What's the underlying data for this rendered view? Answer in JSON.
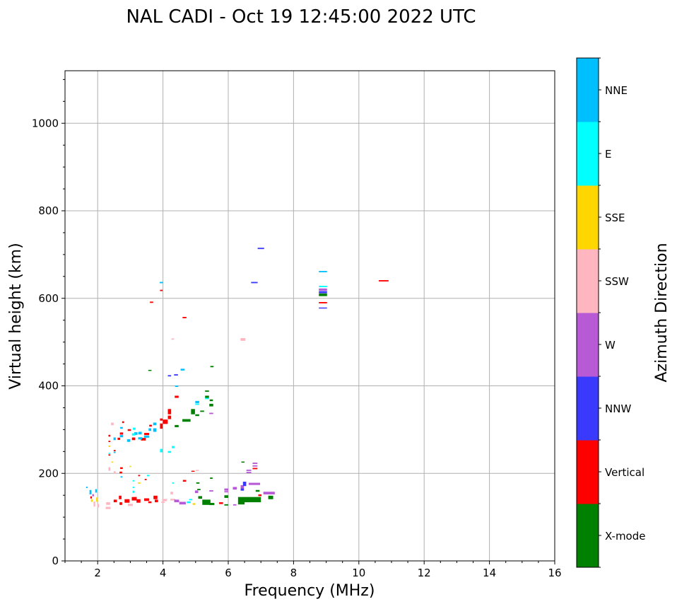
{
  "chart_data": {
    "type": "scatter",
    "title": "NAL CADI - Oct 19 12:45:00 2022 UTC",
    "xlabel": "Frequency (MHz)",
    "ylabel": "Virtual height (km)",
    "xlim": [
      1,
      16
    ],
    "ylim": [
      0,
      1120
    ],
    "xticks": [
      2,
      4,
      6,
      8,
      10,
      12,
      14,
      16
    ],
    "yticks": [
      0,
      200,
      400,
      600,
      800,
      1000
    ],
    "grid": true,
    "colorbar": {
      "label": "Azimuth Direction",
      "categories": [
        {
          "name": "X-mode",
          "color": "#008000"
        },
        {
          "name": "Vertical",
          "color": "#ff0000"
        },
        {
          "name": "NNW",
          "color": "#3a3aff"
        },
        {
          "name": "W",
          "color": "#b85ad6"
        },
        {
          "name": "SSW",
          "color": "#ffb6c1"
        },
        {
          "name": "SSE",
          "color": "#ffd700"
        },
        {
          "name": "E",
          "color": "#00ffff"
        },
        {
          "name": "NNE",
          "color": "#00bfff"
        }
      ]
    },
    "point_format": [
      "frequency_MHz",
      "height_km",
      "direction_index",
      "freq_span_MHz",
      "height_span_km"
    ],
    "points": [
      [
        7.0,
        714,
        2,
        0.2,
        3
      ],
      [
        6.8,
        636,
        2,
        0.2,
        3
      ],
      [
        8.9,
        661,
        7,
        0.25,
        3
      ],
      [
        8.9,
        627,
        6,
        0.25,
        3
      ],
      [
        8.9,
        620,
        3,
        0.25,
        5
      ],
      [
        8.9,
        614,
        2,
        0.25,
        5
      ],
      [
        8.9,
        608,
        0,
        0.25,
        6
      ],
      [
        8.9,
        590,
        1,
        0.25,
        3
      ],
      [
        8.9,
        578,
        2,
        0.25,
        2
      ],
      [
        10.76,
        640,
        1,
        0.3,
        3
      ],
      [
        6.45,
        506,
        4,
        0.15,
        6
      ],
      [
        4.66,
        556,
        1,
        0.12,
        3
      ],
      [
        4.3,
        507,
        4,
        0.08,
        3
      ],
      [
        3.65,
        591,
        1,
        0.1,
        3
      ],
      [
        3.95,
        636,
        7,
        0.1,
        3
      ],
      [
        3.95,
        618,
        1,
        0.08,
        3
      ],
      [
        3.6,
        436,
        0,
        0.1,
        1
      ],
      [
        4.2,
        423,
        2,
        0.1,
        3
      ],
      [
        4.4,
        425,
        2,
        0.12,
        3
      ],
      [
        4.6,
        437,
        7,
        0.12,
        4
      ],
      [
        5.5,
        444,
        0,
        0.1,
        3
      ],
      [
        4.42,
        375,
        1,
        0.12,
        5
      ],
      [
        4.42,
        399,
        7,
        0.1,
        3
      ],
      [
        5.35,
        388,
        0,
        0.12,
        3
      ],
      [
        5.35,
        375,
        0,
        0.12,
        5
      ],
      [
        5.35,
        371,
        6,
        0.12,
        3
      ],
      [
        5.48,
        367,
        0,
        0.1,
        4
      ],
      [
        5.48,
        356,
        0,
        0.12,
        6
      ],
      [
        5.05,
        363,
        7,
        0.12,
        5
      ],
      [
        5.05,
        358,
        6,
        0.12,
        3
      ],
      [
        4.92,
        341,
        0,
        0.12,
        12
      ],
      [
        5.2,
        342,
        0,
        0.12,
        3
      ],
      [
        5.05,
        333,
        0,
        0.12,
        4
      ],
      [
        5.48,
        337,
        3,
        0.12,
        3
      ],
      [
        4.72,
        321,
        0,
        0.25,
        6
      ],
      [
        4.42,
        308,
        0,
        0.12,
        5
      ],
      [
        4.2,
        341,
        1,
        0.1,
        12
      ],
      [
        4.2,
        328,
        1,
        0.1,
        8
      ],
      [
        4.07,
        318,
        1,
        0.15,
        10
      ],
      [
        3.95,
        308,
        1,
        0.08,
        12
      ],
      [
        3.75,
        313,
        7,
        0.1,
        6
      ],
      [
        3.75,
        299,
        7,
        0.1,
        8
      ],
      [
        3.5,
        290,
        1,
        0.15,
        5
      ],
      [
        3.5,
        284,
        7,
        0.15,
        5
      ],
      [
        3.4,
        278,
        1,
        0.15,
        6
      ],
      [
        3.3,
        292,
        7,
        0.1,
        6
      ],
      [
        3.17,
        291,
        7,
        0.1,
        6
      ],
      [
        3.1,
        279,
        1,
        0.1,
        6
      ],
      [
        3.1,
        289,
        6,
        0.1,
        5
      ],
      [
        2.97,
        299,
        1,
        0.1,
        4
      ],
      [
        2.95,
        275,
        7,
        0.1,
        6
      ],
      [
        2.73,
        291,
        1,
        0.1,
        5
      ],
      [
        2.73,
        285,
        7,
        0.1,
        5
      ],
      [
        2.65,
        279,
        1,
        0.08,
        5
      ],
      [
        2.73,
        304,
        7,
        0.08,
        4
      ],
      [
        2.78,
        317,
        1,
        0.06,
        4
      ],
      [
        2.52,
        279,
        7,
        0.07,
        6
      ],
      [
        2.36,
        286,
        1,
        0.06,
        4
      ],
      [
        2.36,
        273,
        1,
        0.06,
        3
      ],
      [
        2.45,
        313,
        4,
        0.08,
        6
      ],
      [
        3.12,
        302,
        6,
        0.08,
        5
      ],
      [
        3.62,
        309,
        1,
        0.08,
        4
      ],
      [
        3.95,
        323,
        1,
        0.08,
        5
      ],
      [
        3.3,
        280,
        7,
        0.12,
        5
      ],
      [
        3.6,
        300,
        7,
        0.08,
        6
      ],
      [
        2.36,
        262,
        5,
        0.06,
        3
      ],
      [
        2.36,
        242,
        1,
        0.06,
        3
      ],
      [
        2.36,
        246,
        6,
        0.06,
        2
      ],
      [
        2.52,
        252,
        1,
        0.06,
        3
      ],
      [
        2.52,
        248,
        7,
        0.06,
        3
      ],
      [
        4.31,
        260,
        6,
        0.08,
        5
      ],
      [
        4.2,
        249,
        6,
        0.1,
        4
      ],
      [
        3.95,
        252,
        6,
        0.08,
        8
      ],
      [
        2.45,
        226,
        5,
        0.06,
        2
      ],
      [
        3.0,
        216,
        5,
        0.06,
        2
      ],
      [
        2.36,
        210,
        4,
        0.06,
        8
      ],
      [
        2.73,
        212,
        1,
        0.08,
        4
      ],
      [
        2.52,
        202,
        4,
        0.06,
        6
      ],
      [
        2.71,
        202,
        1,
        0.08,
        4
      ],
      [
        2.73,
        192,
        7,
        0.06,
        3
      ],
      [
        3.27,
        195,
        1,
        0.06,
        3
      ],
      [
        3.47,
        186,
        1,
        0.06,
        3
      ],
      [
        3.27,
        178,
        5,
        0.08,
        3
      ],
      [
        3.55,
        195,
        6,
        0.08,
        3
      ],
      [
        3.1,
        183,
        6,
        0.06,
        3
      ],
      [
        3.1,
        168,
        6,
        0.06,
        3
      ],
      [
        3.1,
        158,
        6,
        0.06,
        5
      ],
      [
        4.66,
        183,
        1,
        0.1,
        4
      ],
      [
        4.92,
        205,
        1,
        0.1,
        2
      ],
      [
        5.05,
        207,
        4,
        0.1,
        2
      ],
      [
        5.07,
        178,
        0,
        0.1,
        3
      ],
      [
        5.48,
        189,
        0,
        0.08,
        3
      ],
      [
        4.31,
        178,
        6,
        0.06,
        3
      ],
      [
        6.82,
        223,
        3,
        0.15,
        3
      ],
      [
        6.82,
        217,
        3,
        0.15,
        3
      ],
      [
        6.82,
        211,
        1,
        0.15,
        3
      ],
      [
        6.63,
        207,
        3,
        0.15,
        3
      ],
      [
        6.63,
        202,
        3,
        0.15,
        3
      ],
      [
        6.45,
        226,
        0,
        0.1,
        2
      ],
      [
        1.67,
        168,
        7,
        0.05,
        3
      ],
      [
        1.78,
        157,
        7,
        0.06,
        10
      ],
      [
        1.8,
        145,
        1,
        0.05,
        5
      ],
      [
        1.82,
        138,
        5,
        0.05,
        6
      ],
      [
        1.86,
        150,
        3,
        0.05,
        5
      ],
      [
        1.9,
        130,
        4,
        0.05,
        12
      ],
      [
        1.95,
        160,
        7,
        0.05,
        8
      ],
      [
        1.98,
        140,
        5,
        0.05,
        10
      ],
      [
        2.02,
        126,
        4,
        0.05,
        8
      ],
      [
        2.69,
        145,
        1,
        0.08,
        8
      ],
      [
        2.71,
        131,
        1,
        0.08,
        6
      ],
      [
        2.32,
        131,
        4,
        0.12,
        6
      ],
      [
        2.32,
        121,
        4,
        0.15,
        5
      ],
      [
        2.54,
        137,
        1,
        0.1,
        6
      ],
      [
        2.9,
        137,
        1,
        0.15,
        8
      ],
      [
        3.12,
        142,
        1,
        0.15,
        8
      ],
      [
        3.25,
        137,
        1,
        0.12,
        8
      ],
      [
        3.5,
        140,
        1,
        0.15,
        6
      ],
      [
        3.77,
        145,
        1,
        0.12,
        8
      ],
      [
        3.8,
        137,
        1,
        0.1,
        6
      ],
      [
        4.05,
        139,
        4,
        0.15,
        5
      ],
      [
        4.3,
        140,
        4,
        0.15,
        4
      ],
      [
        4.42,
        137,
        3,
        0.15,
        6
      ],
      [
        4.6,
        132,
        3,
        0.2,
        6
      ],
      [
        4.79,
        134,
        6,
        0.12,
        4
      ],
      [
        4.95,
        130,
        5,
        0.08,
        4
      ],
      [
        5.14,
        145,
        0,
        0.12,
        6
      ],
      [
        5.33,
        134,
        0,
        0.25,
        12
      ],
      [
        5.03,
        158,
        3,
        0.1,
        6
      ],
      [
        5.1,
        163,
        0,
        0.1,
        3
      ],
      [
        5.48,
        160,
        3,
        0.12,
        3
      ],
      [
        5.78,
        132,
        1,
        0.12,
        4
      ],
      [
        5.94,
        163,
        3,
        0.12,
        5
      ],
      [
        5.94,
        158,
        3,
        0.12,
        3
      ],
      [
        5.94,
        147,
        0,
        0.12,
        6
      ],
      [
        5.94,
        128,
        0,
        0.12,
        3
      ],
      [
        6.2,
        166,
        3,
        0.12,
        6
      ],
      [
        6.43,
        169,
        3,
        0.1,
        8
      ],
      [
        6.43,
        163,
        2,
        0.1,
        5
      ],
      [
        6.5,
        176,
        2,
        0.1,
        10
      ],
      [
        6.8,
        176,
        3,
        0.35,
        5
      ],
      [
        6.9,
        160,
        0,
        0.12,
        4
      ],
      [
        6.97,
        150,
        1,
        0.1,
        4
      ],
      [
        7.25,
        155,
        3,
        0.35,
        6
      ],
      [
        6.65,
        140,
        0,
        0.7,
        12
      ],
      [
        7.3,
        145,
        0,
        0.15,
        8
      ],
      [
        6.4,
        132,
        0,
        0.2,
        6
      ],
      [
        4.27,
        155,
        4,
        0.08,
        6
      ],
      [
        4.85,
        140,
        6,
        0.1,
        3
      ],
      [
        3.0,
        128,
        4,
        0.15,
        5
      ],
      [
        3.6,
        134,
        1,
        0.1,
        4
      ],
      [
        4.0,
        134,
        4,
        0.1,
        3
      ],
      [
        5.5,
        130,
        0,
        0.15,
        5
      ],
      [
        6.2,
        128,
        3,
        0.1,
        3
      ]
    ]
  }
}
